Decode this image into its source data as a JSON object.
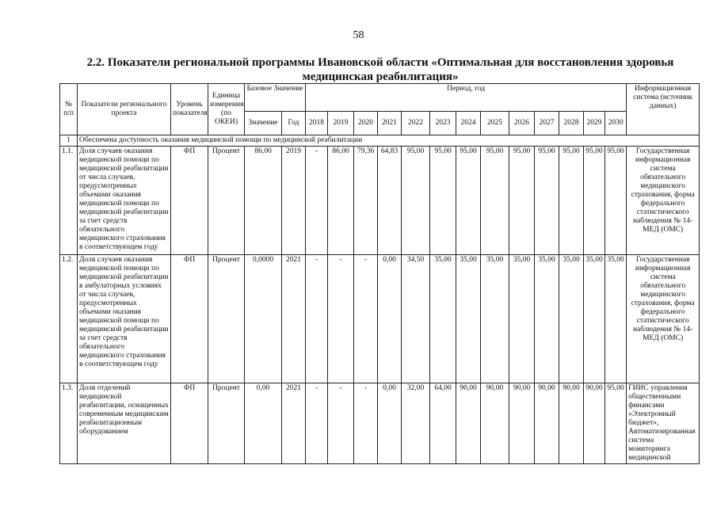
{
  "page_number": "58",
  "title": "2.2. Показатели региональной программы Ивановской области «Оптимальная для восстановления здоровья медицинская реабилитация»",
  "header": {
    "num": "№ п/п",
    "name": "Показатели регионального проекта",
    "level": "Уровень показателя",
    "unit": "Единица измерения (по ОКЕИ)",
    "base": "Базовое Значение",
    "base_value": "Значение",
    "base_year": "Год",
    "period": "Период, год",
    "years": [
      "2018",
      "2019",
      "2020",
      "2021",
      "2022",
      "2023",
      "2024",
      "2025",
      "2026",
      "2027",
      "2028",
      "2029",
      "2030"
    ],
    "info": "Информационная система (источник данных)"
  },
  "section": {
    "num": "1",
    "text": "Обеспечена доступность оказания медицинской помощи по медицинской реабилитации"
  },
  "rows": [
    {
      "num": "1.1.",
      "name": "Доля случаев оказания медицинской помощи по медицинской реабилитации от числа случаев, предусмотренных объемами оказания медицинской помощи по медицинской реабилитации за счет средств обязательного медицинского страхования в соответствующем году",
      "level": "ФП",
      "unit": "Процент",
      "base_value": "86,00",
      "base_year": "2019",
      "values": [
        "-",
        "86,00",
        "79,36",
        "64,83",
        "95,00",
        "95,00",
        "95,00",
        "95,00",
        "95,00",
        "95,00",
        "95,00",
        "95,00",
        "95,00"
      ],
      "info": "Государственная информационная система обязательного медицинского страхования, форма федерального статистического наблюдения № 14-МЕД (ОМС)"
    },
    {
      "num": "1.2.",
      "name": "Доля случаев оказания медицинской помощи по медицинской реабилитации в амбулаторных условиях от числа случаев, предусмотренных объемами оказания медицинской помощи по медицинской реабилитации за счет средств обязательного медицинского страхования в соответствующем году",
      "level": "ФП",
      "unit": "Процент",
      "base_value": "0,0000",
      "base_year": "2021",
      "values": [
        "-",
        "-",
        "-",
        "0,00",
        "34,50",
        "35,00",
        "35,00",
        "35,00",
        "35,00",
        "35,00",
        "35,00",
        "35,00",
        "35,00"
      ],
      "info": "Государственная информационная система обязательного медицинского страхования, форма федерального статистического наблюдения № 14-МЕД (ОМС)"
    },
    {
      "num": "1.3.",
      "name": "Доля отделений медицинской реабилитации, оснащенных современным медицинским реабилитационным оборудованием",
      "level": "ФП",
      "unit": "Процент",
      "base_value": "0,00",
      "base_year": "2021",
      "values": [
        "-",
        "-",
        "-",
        "0,00",
        "32,00",
        "64,00",
        "90,00",
        "90,00",
        "90,00",
        "90,00",
        "90,00",
        "90,00",
        "95,00"
      ],
      "info": "ГИИС управления общественными финансами «Электронный бюджет», Автоматизированная система мониторинга медицинской"
    }
  ]
}
